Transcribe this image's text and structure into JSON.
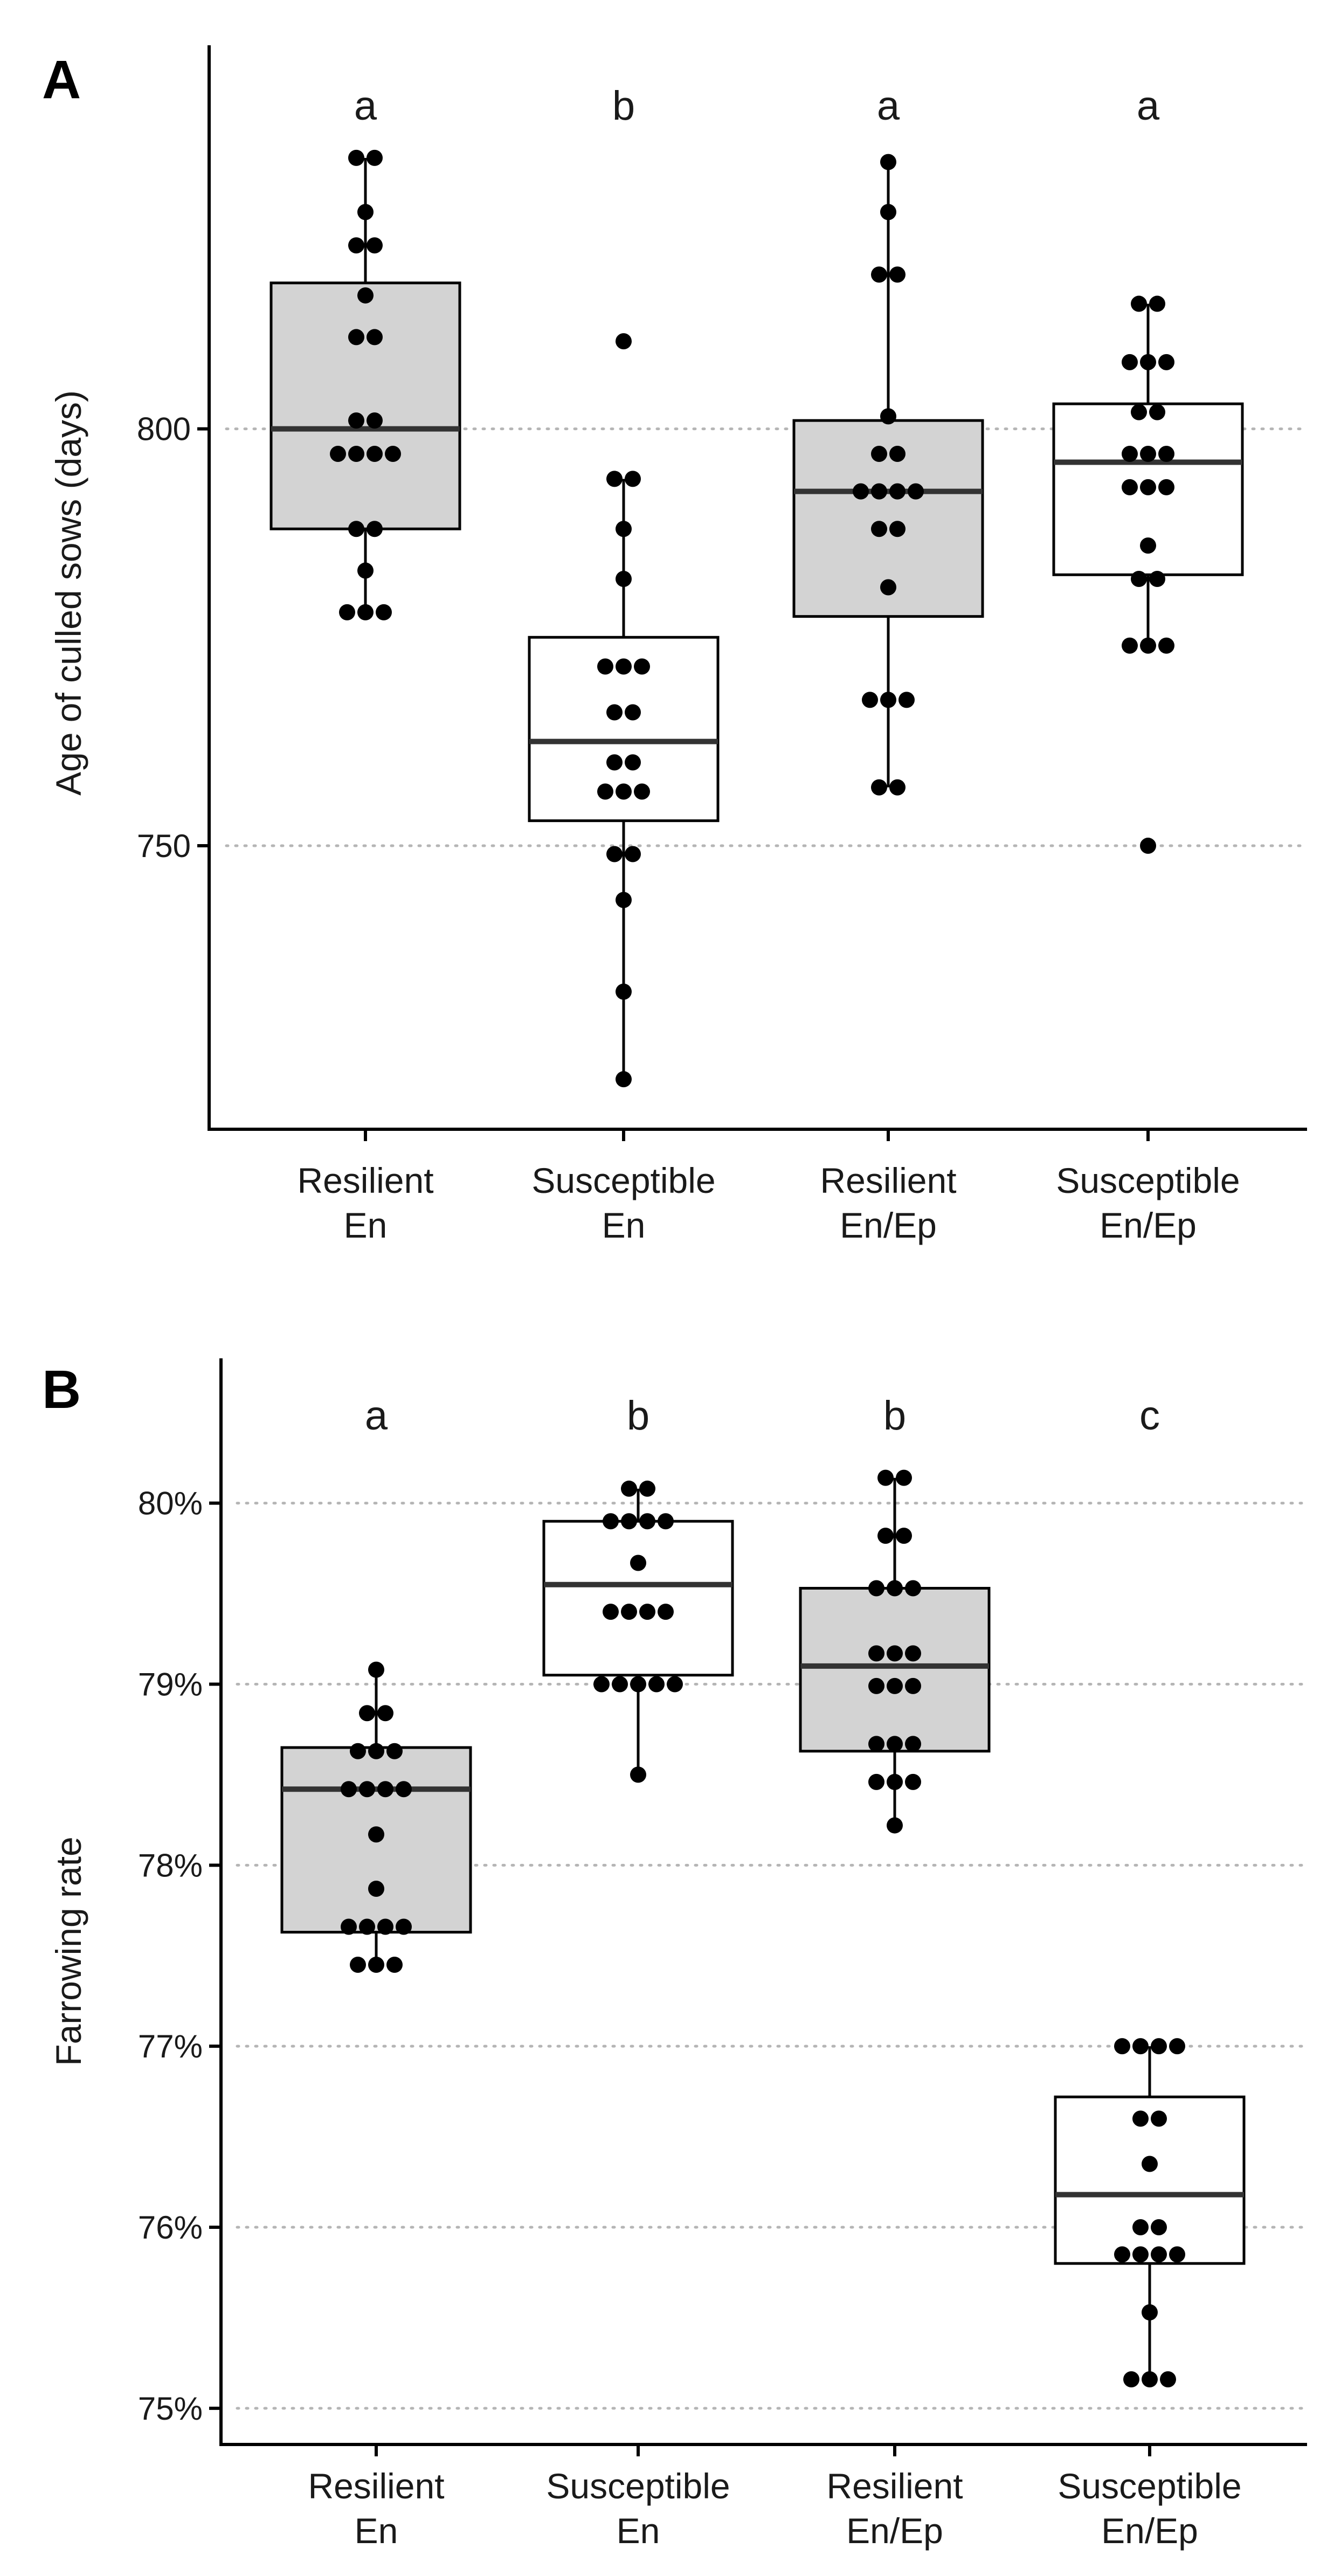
{
  "figure": {
    "panels": [
      {
        "tag": "A",
        "ylabel": "Age of culled sows (days)"
      },
      {
        "tag": "B",
        "ylabel": "Farrowing rate"
      }
    ]
  },
  "chart_data": [
    {
      "type": "box",
      "panel": "A",
      "title": "",
      "xlabel": "",
      "ylabel": "Age of culled sows (days)",
      "ylim": [
        716,
        846
      ],
      "yticks": [
        750,
        800
      ],
      "ytick_labels": [
        "750",
        "800"
      ],
      "grid": "horizontal dotted at ticks",
      "categories": [
        {
          "line1": "Resilient",
          "line2": "En",
          "fill": "#d3d3d3",
          "letter": "a",
          "box": {
            "q1": 788,
            "median": 800,
            "q3": 817.5,
            "whisker_low": 778,
            "whisker_high": 832.5
          },
          "points": [
            832.5,
            832.5,
            826,
            822,
            822,
            816,
            811,
            811,
            801,
            801,
            797,
            797,
            797,
            797,
            788,
            788,
            783,
            778,
            778,
            778
          ]
        },
        {
          "line1": "Susceptible",
          "line2": "En",
          "fill": "#ffffff",
          "letter": "b",
          "box": {
            "q1": 753,
            "median": 762.5,
            "q3": 775,
            "whisker_low": 722,
            "whisker_high": 794
          },
          "points": [
            810.5,
            794,
            794,
            788,
            782,
            771.5,
            771.5,
            771.5,
            766,
            766,
            760,
            760,
            756.5,
            756.5,
            756.5,
            749,
            749,
            743.5,
            732.5,
            722
          ]
        },
        {
          "line1": "Resilient",
          "line2": "En/Ep",
          "fill": "#d3d3d3",
          "letter": "a",
          "box": {
            "q1": 777.5,
            "median": 792.5,
            "q3": 801,
            "whisker_low": 757,
            "whisker_high": 832
          },
          "points": [
            832,
            826,
            818.5,
            818.5,
            801.5,
            797,
            797,
            792.5,
            792.5,
            792.5,
            792.5,
            788,
            788,
            781,
            767.5,
            767.5,
            767.5,
            757,
            757
          ]
        },
        {
          "line1": "Susceptible",
          "line2": "En/Ep",
          "fill": "#ffffff",
          "letter": "a",
          "box": {
            "q1": 782.5,
            "median": 796,
            "q3": 803,
            "whisker_low": 774,
            "whisker_high": 815
          },
          "points": [
            815,
            815,
            808,
            808,
            808,
            802,
            802,
            797,
            797,
            797,
            793,
            793,
            793,
            786,
            782,
            782,
            774,
            774,
            774,
            750
          ]
        }
      ]
    },
    {
      "type": "box",
      "panel": "B",
      "title": "",
      "xlabel": "",
      "ylabel": "Farrowing rate",
      "ylim": [
        74.8,
        80.8
      ],
      "yticks": [
        75,
        76,
        77,
        78,
        79,
        80
      ],
      "ytick_labels": [
        "75%",
        "76%",
        "77%",
        "78%",
        "79%",
        "80%"
      ],
      "grid": "horizontal dotted at ticks",
      "categories": [
        {
          "line1": "Resilient",
          "line2": "En",
          "fill": "#d3d3d3",
          "letter": "a",
          "box": {
            "q1": 77.63,
            "median": 78.42,
            "q3": 78.65,
            "whisker_low": 77.45,
            "whisker_high": 79.08
          },
          "points": [
            79.08,
            78.84,
            78.84,
            78.63,
            78.63,
            78.63,
            78.42,
            78.42,
            78.42,
            78.42,
            78.17,
            77.87,
            77.66,
            77.66,
            77.66,
            77.66,
            77.45,
            77.45,
            77.45
          ]
        },
        {
          "line1": "Susceptible",
          "line2": "En",
          "fill": "#ffffff",
          "letter": "b",
          "box": {
            "q1": 79.05,
            "median": 79.55,
            "q3": 79.9,
            "whisker_low": 78.5,
            "whisker_high": 80.08
          },
          "points": [
            80.08,
            80.08,
            79.9,
            79.9,
            79.9,
            79.9,
            79.67,
            79.4,
            79.4,
            79.4,
            79.4,
            79.0,
            79.0,
            79.0,
            79.0,
            79.0,
            78.5
          ]
        },
        {
          "line1": "Resilient",
          "line2": "En/Ep",
          "fill": "#d3d3d3",
          "letter": "b",
          "box": {
            "q1": 78.63,
            "median": 79.1,
            "q3": 79.53,
            "whisker_low": 78.22,
            "whisker_high": 80.14
          },
          "points": [
            80.14,
            80.14,
            79.82,
            79.82,
            79.53,
            79.53,
            79.53,
            79.17,
            79.17,
            79.17,
            78.99,
            78.99,
            78.99,
            78.67,
            78.67,
            78.67,
            78.46,
            78.46,
            78.46,
            78.22
          ]
        },
        {
          "line1": "Susceptible",
          "line2": "En/Ep",
          "fill": "#ffffff",
          "letter": "c",
          "box": {
            "q1": 75.8,
            "median": 76.18,
            "q3": 76.72,
            "whisker_low": 75.16,
            "whisker_high": 77.0
          },
          "points": [
            77.0,
            77.0,
            77.0,
            77.0,
            76.6,
            76.6,
            76.35,
            76.0,
            76.0,
            75.85,
            75.85,
            75.85,
            75.85,
            75.53,
            75.16,
            75.16,
            75.16
          ]
        }
      ]
    }
  ]
}
